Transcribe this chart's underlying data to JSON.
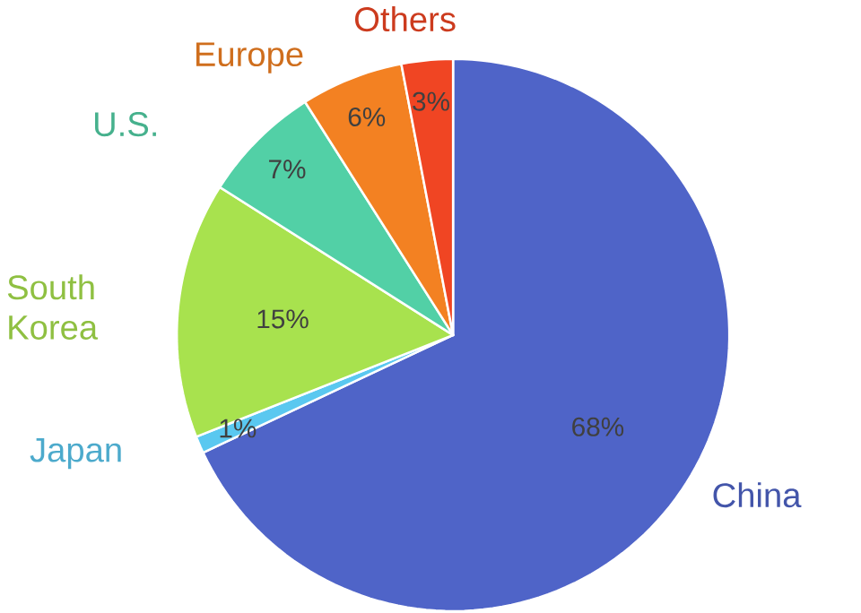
{
  "chart_data": {
    "type": "pie",
    "categories": [
      "China",
      "Japan",
      "South Korea",
      "U.S.",
      "Europe",
      "Others"
    ],
    "values": [
      68,
      1,
      15,
      7,
      6,
      3
    ],
    "value_labels": [
      "68%",
      "1%",
      "15%",
      "7%",
      "6%",
      "3%"
    ],
    "colors": [
      "#4f64c8",
      "#5ac8f0",
      "#a8e24e",
      "#52d0a6",
      "#f38122",
      "#f04523"
    ],
    "legend": false
  }
}
